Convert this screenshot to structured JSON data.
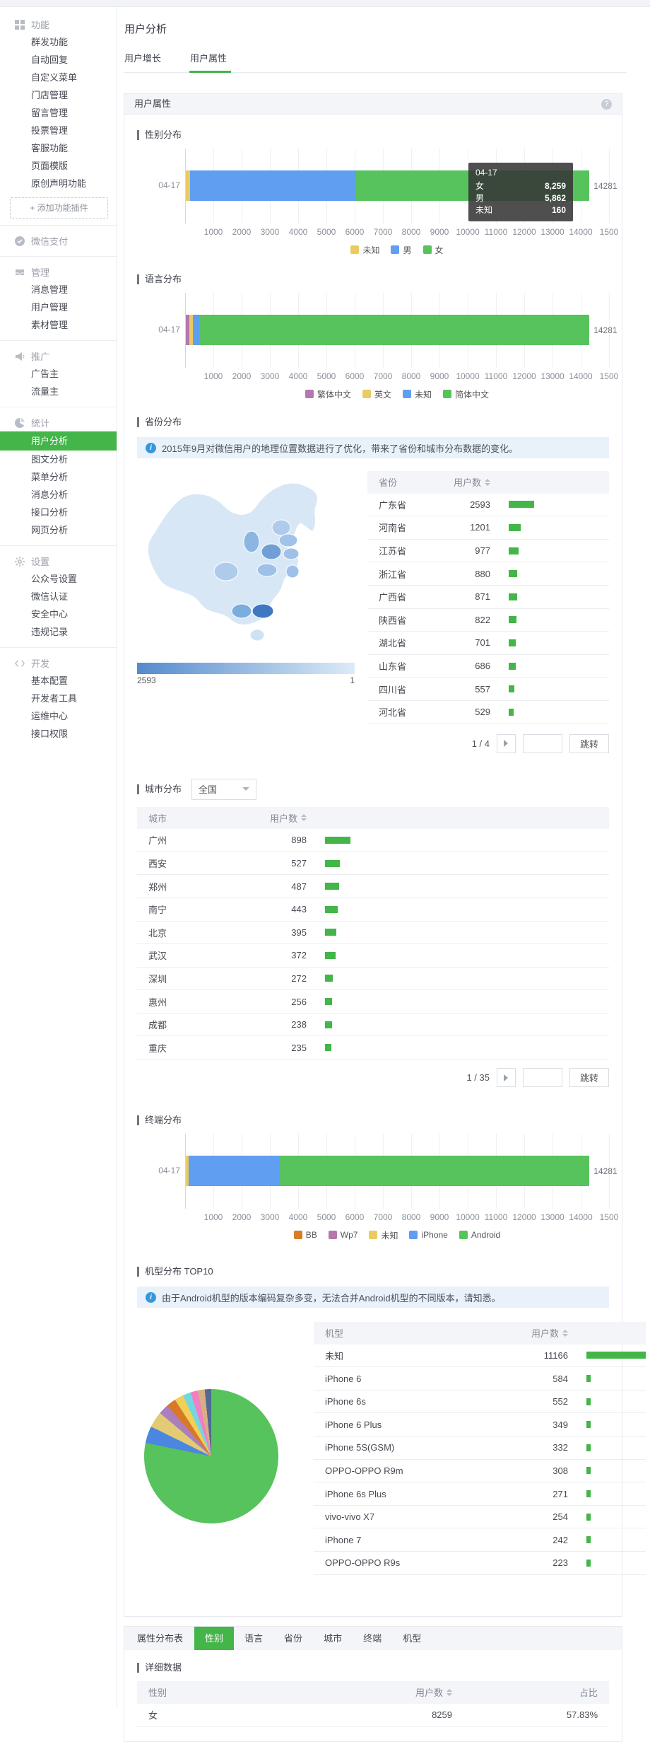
{
  "sidebar": {
    "groups": [
      {
        "icon": "grid-icon",
        "label": "功能",
        "items": [
          {
            "label": "群发功能"
          },
          {
            "label": "自动回复"
          },
          {
            "label": "自定义菜单"
          },
          {
            "label": "门店管理"
          },
          {
            "label": "留言管理"
          },
          {
            "label": "投票管理"
          },
          {
            "label": "客服功能"
          },
          {
            "label": "页面模版"
          },
          {
            "label": "原创声明功能"
          }
        ],
        "footer_button": "+ 添加功能插件",
        "divider_after": true
      },
      {
        "icon": "wechatpay-icon",
        "label": "微信支付",
        "items": [],
        "divider_after": true
      },
      {
        "icon": "inbox-icon",
        "label": "管理",
        "items": [
          {
            "label": "消息管理"
          },
          {
            "label": "用户管理"
          },
          {
            "label": "素材管理"
          }
        ],
        "divider_after": true
      },
      {
        "icon": "megaphone-icon",
        "label": "推广",
        "items": [
          {
            "label": "广告主"
          },
          {
            "label": "流量主"
          }
        ],
        "divider_after": true
      },
      {
        "icon": "piechart-icon",
        "label": "统计",
        "items": [
          {
            "label": "用户分析",
            "active": true
          },
          {
            "label": "图文分析"
          },
          {
            "label": "菜单分析"
          },
          {
            "label": "消息分析"
          },
          {
            "label": "接口分析"
          },
          {
            "label": "网页分析"
          }
        ],
        "divider_after": true
      },
      {
        "icon": "gear-icon",
        "label": "设置",
        "items": [
          {
            "label": "公众号设置"
          },
          {
            "label": "微信认证"
          },
          {
            "label": "安全中心"
          },
          {
            "label": "违规记录"
          }
        ],
        "divider_after": true
      },
      {
        "icon": "code-icon",
        "label": "开发",
        "items": [
          {
            "label": "基本配置"
          },
          {
            "label": "开发者工具"
          },
          {
            "label": "运维中心"
          },
          {
            "label": "接口权限"
          }
        ],
        "divider_after": false
      }
    ]
  },
  "header": {
    "title": "用户分析",
    "tabs": [
      {
        "label": "用户增长",
        "active": false
      },
      {
        "label": "用户属性",
        "active": true
      }
    ]
  },
  "panel": {
    "title": "用户属性",
    "help_icon": "?"
  },
  "axis_ticks": [
    "1000",
    "2000",
    "3000",
    "4000",
    "5000",
    "6000",
    "7000",
    "8000",
    "9000",
    "10000",
    "11000",
    "12000",
    "13000",
    "14000",
    "1500"
  ],
  "gender": {
    "title": "性别分布",
    "chart_data": {
      "type": "bar",
      "category": "04-17",
      "xmax": 15000,
      "total_label": "14281",
      "series": [
        {
          "name": "未知",
          "value": 160,
          "color": "#e9cb62"
        },
        {
          "name": "男",
          "value": 5862,
          "color": "#5f9ef0"
        },
        {
          "name": "女",
          "value": 8259,
          "color": "#57c35c"
        }
      ],
      "tooltip": {
        "title": "04-17",
        "rows": [
          {
            "label": "女",
            "value": "8,259"
          },
          {
            "label": "男",
            "value": "5,862"
          },
          {
            "label": "未知",
            "value": "160"
          }
        ]
      }
    }
  },
  "language": {
    "title": "语言分布",
    "chart_data": {
      "type": "bar",
      "category": "04-17",
      "xmax": 15000,
      "total_label": "14281",
      "series": [
        {
          "name": "繁体中文",
          "value": 130,
          "color": "#b477ae"
        },
        {
          "name": "英文",
          "value": 130,
          "color": "#e9cb62"
        },
        {
          "name": "未知",
          "value": 210,
          "color": "#5f9ef0"
        },
        {
          "name": "简体中文",
          "value": 13811,
          "color": "#57c35c"
        }
      ]
    }
  },
  "province": {
    "title": "省份分布",
    "notice": "2015年9月对微信用户的地理位置数据进行了优化，带来了省份和城市分布数据的变化。",
    "map_legend": {
      "max": "2593",
      "min": "1"
    },
    "table": {
      "headers": [
        "省份",
        "用户数"
      ],
      "rows": [
        [
          "广东省",
          2593
        ],
        [
          "河南省",
          1201
        ],
        [
          "江苏省",
          977
        ],
        [
          "浙江省",
          880
        ],
        [
          "广西省",
          871
        ],
        [
          "陕西省",
          822
        ],
        [
          "湖北省",
          701
        ],
        [
          "山东省",
          686
        ],
        [
          "四川省",
          557
        ],
        [
          "河北省",
          529
        ]
      ]
    },
    "pagination": {
      "current": "1 / 4",
      "jump": "跳转"
    }
  },
  "city": {
    "title": "城市分布",
    "filter": "全国",
    "table": {
      "headers": [
        "城市",
        "用户数"
      ],
      "rows": [
        [
          "广州",
          898
        ],
        [
          "西安",
          527
        ],
        [
          "郑州",
          487
        ],
        [
          "南宁",
          443
        ],
        [
          "北京",
          395
        ],
        [
          "武汉",
          372
        ],
        [
          "深圳",
          272
        ],
        [
          "惠州",
          256
        ],
        [
          "成都",
          238
        ],
        [
          "重庆",
          235
        ]
      ]
    },
    "pagination": {
      "current": "1 / 35",
      "jump": "跳转"
    }
  },
  "terminal": {
    "title": "终端分布",
    "chart_data": {
      "type": "bar",
      "category": "04-17",
      "xmax": 15000,
      "total_label": "14281",
      "series": [
        {
          "name": "BB",
          "value": 0,
          "color": "#d87b27"
        },
        {
          "name": "Wp7",
          "value": 0,
          "color": "#b477ae"
        },
        {
          "name": "未知",
          "value": 100,
          "color": "#e9cb62"
        },
        {
          "name": "iPhone",
          "value": 3200,
          "color": "#5f9ef0"
        },
        {
          "name": "Android",
          "value": 10981,
          "color": "#57c35c"
        }
      ]
    }
  },
  "device": {
    "title": "机型分布 TOP10",
    "notice": "由于Android机型的版本编码复杂多变，无法合并Android机型的不同版本，请知悉。",
    "table": {
      "headers": [
        "机型",
        "用户数"
      ],
      "rows": [
        [
          "未知",
          11166
        ],
        [
          "iPhone 6",
          584
        ],
        [
          "iPhone 6s",
          552
        ],
        [
          "iPhone 6 Plus",
          349
        ],
        [
          "iPhone 5S(GSM)",
          332
        ],
        [
          "OPPO-OPPO R9m",
          308
        ],
        [
          "iPhone 6s Plus",
          271
        ],
        [
          "vivo-vivo X7",
          254
        ],
        [
          "iPhone 7",
          242
        ],
        [
          "OPPO-OPPO R9s",
          223
        ]
      ]
    },
    "pie": {
      "type": "pie",
      "slices": [
        {
          "label": "未知",
          "value": 11166,
          "color": "#57c35c"
        },
        {
          "label": "iPhone 6",
          "value": 584,
          "color": "#4b87e0"
        },
        {
          "label": "iPhone 6s",
          "value": 552,
          "color": "#e2cb74"
        },
        {
          "label": "iPhone 6 Plus",
          "value": 349,
          "color": "#aa7fbc"
        },
        {
          "label": "iPhone 5S(GSM)",
          "value": 332,
          "color": "#d8792a"
        },
        {
          "label": "OPPO-OPPO R9m",
          "value": 308,
          "color": "#f2cf55"
        },
        {
          "label": "iPhone 6s Plus",
          "value": 271,
          "color": "#74d7e0"
        },
        {
          "label": "vivo-vivo X7",
          "value": 254,
          "color": "#f07fc6"
        },
        {
          "label": "iPhone 7",
          "value": 242,
          "color": "#d8af80"
        },
        {
          "label": "OPPO-OPPO R9s",
          "value": 223,
          "color": "#4f6a96"
        }
      ]
    }
  },
  "bottom": {
    "tabs": [
      {
        "label": "属性分布表",
        "caption": true
      },
      {
        "label": "性别",
        "active": true
      },
      {
        "label": "语言"
      },
      {
        "label": "省份"
      },
      {
        "label": "城市"
      },
      {
        "label": "终端"
      },
      {
        "label": "机型"
      }
    ],
    "detail_title": "详细数据",
    "table": {
      "headers": [
        "性别",
        "用户数",
        "占比"
      ],
      "rows": [
        [
          "女",
          "8259",
          "57.83%"
        ]
      ]
    }
  }
}
